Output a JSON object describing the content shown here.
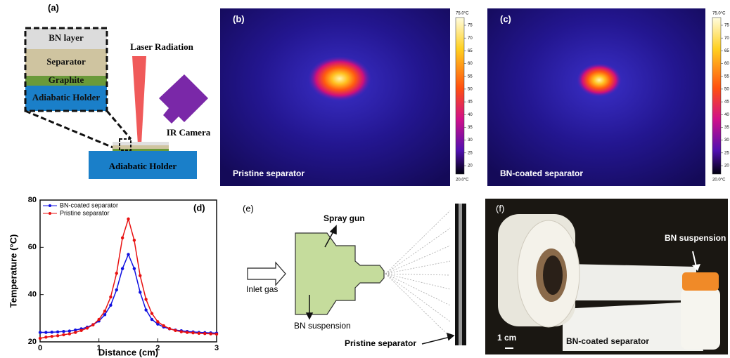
{
  "panels": {
    "a": {
      "label": "(a)",
      "layers": [
        "BN layer",
        "Separator",
        "Graphite",
        "Adiabatic Holder"
      ],
      "laser": "Laser Radiation",
      "camera": "IR Camera",
      "holder": "Adiabatic Holder"
    },
    "b": {
      "label": "(b)",
      "caption": "Pristine separator",
      "colorbar_max": "75.0°C",
      "colorbar_min": "20.0°C",
      "colorbar_ticks": [
        75,
        70,
        65,
        60,
        55,
        50,
        45,
        40,
        35,
        30,
        25,
        20
      ]
    },
    "c": {
      "label": "(c)",
      "caption": "BN-coated separator",
      "colorbar_max": "75.0°C",
      "colorbar_min": "20.0°C",
      "colorbar_ticks": [
        75,
        70,
        65,
        60,
        55,
        50,
        45,
        40,
        35,
        30,
        25,
        20
      ]
    },
    "e": {
      "label": "(e)",
      "gun": "Spray gun",
      "inlet": "Inlet gas",
      "suspension": "BN suspension",
      "target": "Pristine separator"
    },
    "f": {
      "label": "(f)",
      "bottle": "BN suspension",
      "scale": "1 cm",
      "sheet": "BN-coated separator"
    }
  },
  "chart_data": {
    "type": "line",
    "label": "(d)",
    "x_label": "Distance (cm)",
    "y_label": "Temperature (°C)",
    "x": [
      0,
      0.1,
      0.2,
      0.3,
      0.4,
      0.5,
      0.6,
      0.7,
      0.8,
      0.9,
      1.0,
      1.1,
      1.2,
      1.3,
      1.4,
      1.5,
      1.6,
      1.7,
      1.8,
      1.9,
      2.0,
      2.1,
      2.2,
      2.3,
      2.4,
      2.5,
      2.6,
      2.7,
      2.8,
      2.9,
      3.0
    ],
    "series": [
      {
        "name": "BN-coated separator",
        "color": "#1010e0",
        "values": [
          24,
          24,
          24.1,
          24.2,
          24.4,
          24.6,
          25,
          25.5,
          26.2,
          27.3,
          28.8,
          31.5,
          35.5,
          42,
          51,
          57,
          51,
          41,
          33.5,
          29.5,
          27.5,
          26.3,
          25.5,
          25,
          24.7,
          24.4,
          24.2,
          24,
          23.9,
          23.8,
          23.7
        ]
      },
      {
        "name": "Pristine separator",
        "color": "#e81010",
        "values": [
          21.5,
          22,
          22.3,
          22.6,
          23,
          23.4,
          24,
          24.8,
          25.8,
          27.2,
          29.5,
          33,
          39,
          49,
          64,
          72,
          63,
          48,
          38,
          32,
          28.5,
          26.8,
          25.6,
          24.8,
          24.3,
          24,
          23.8,
          23.6,
          23.5,
          23.4,
          23.3
        ]
      }
    ],
    "xlim": [
      0,
      3
    ],
    "xticks": [
      0,
      1,
      2,
      3
    ],
    "ylim": [
      20,
      80
    ],
    "yticks": [
      20,
      40,
      60,
      80
    ],
    "legend": "upper left"
  }
}
